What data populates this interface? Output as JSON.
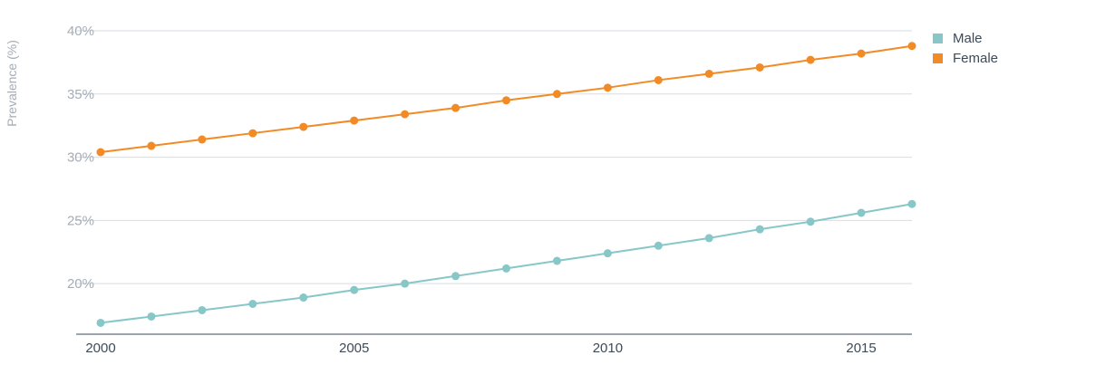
{
  "chart_data": {
    "type": "line",
    "title": "",
    "xlabel": "",
    "ylabel": "Prevalence (%)",
    "x": [
      2000,
      2001,
      2002,
      2003,
      2004,
      2005,
      2006,
      2007,
      2008,
      2009,
      2010,
      2011,
      2012,
      2013,
      2014,
      2015,
      2016
    ],
    "x_ticks": [
      2000,
      2005,
      2010,
      2015
    ],
    "x_tick_labels": [
      "2000",
      "2005",
      "2010",
      "2015"
    ],
    "y_ticks": [
      20,
      25,
      30,
      35,
      40
    ],
    "y_tick_labels": [
      "20%",
      "25%",
      "30%",
      "35%",
      "40%"
    ],
    "xlim": [
      2000,
      2016
    ],
    "ylim": [
      16,
      40
    ],
    "grid": true,
    "legend_position": "top-right",
    "series": [
      {
        "name": "Male",
        "color": "#88c7c7",
        "values": [
          16.9,
          17.4,
          17.9,
          18.4,
          18.9,
          19.5,
          20.0,
          20.6,
          21.2,
          21.8,
          22.4,
          23.0,
          23.6,
          24.3,
          24.9,
          25.6,
          26.3
        ]
      },
      {
        "name": "Female",
        "color": "#f28a25",
        "values": [
          30.4,
          30.9,
          31.4,
          31.9,
          32.4,
          32.9,
          33.4,
          33.9,
          34.5,
          35.0,
          35.5,
          36.1,
          36.6,
          37.1,
          37.7,
          38.2,
          38.8
        ]
      }
    ]
  }
}
